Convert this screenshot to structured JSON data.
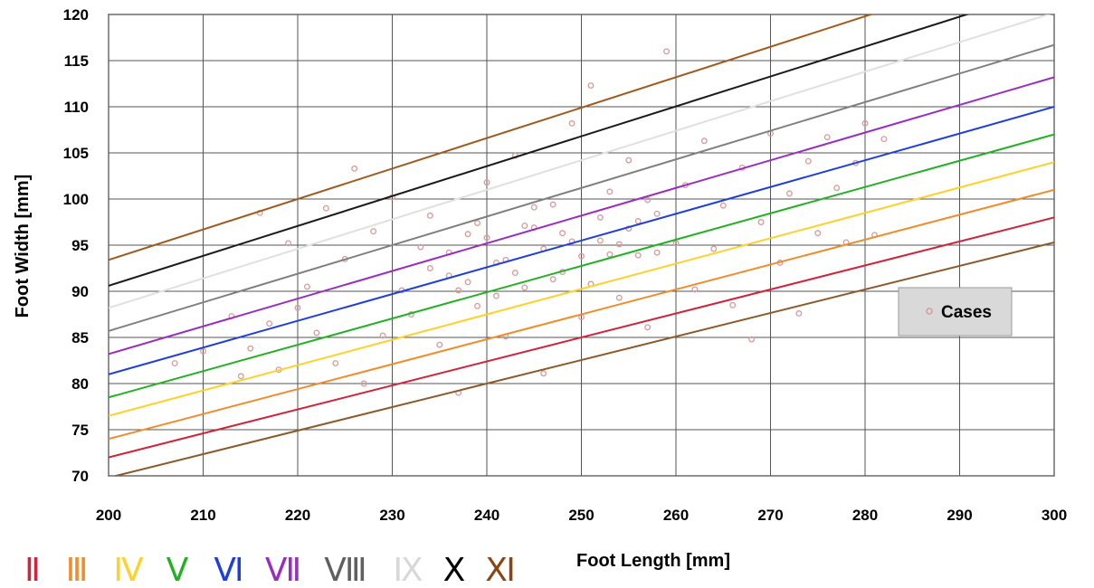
{
  "chart_data": {
    "type": "scatter",
    "xlabel": "Foot Length [mm]",
    "ylabel": "Foot Width [mm]",
    "xlim": [
      200,
      300
    ],
    "ylim": [
      70,
      120
    ],
    "xticks": [
      200,
      210,
      220,
      230,
      240,
      250,
      260,
      270,
      280,
      290,
      300
    ],
    "yticks": [
      70,
      75,
      80,
      85,
      90,
      95,
      100,
      105,
      110,
      115,
      120
    ],
    "grid": true,
    "legend": {
      "position": "right",
      "entries": [
        {
          "label": "Cases",
          "color": "#d99a9a"
        }
      ]
    },
    "scatter_series": {
      "name": "Cases",
      "color": "#d99a9a",
      "points": [
        [
          207,
          82.2
        ],
        [
          210,
          83.5
        ],
        [
          213,
          87.3
        ],
        [
          214,
          80.8
        ],
        [
          215,
          83.8
        ],
        [
          216,
          98.5
        ],
        [
          217,
          86.5
        ],
        [
          218,
          81.5
        ],
        [
          219,
          95.2
        ],
        [
          220,
          88.2
        ],
        [
          221,
          90.5
        ],
        [
          222,
          85.5
        ],
        [
          223,
          99.0
        ],
        [
          224,
          82.2
        ],
        [
          225,
          93.5
        ],
        [
          226,
          103.3
        ],
        [
          227,
          80.0
        ],
        [
          228,
          96.5
        ],
        [
          229,
          85.2
        ],
        [
          230,
          100.2
        ],
        [
          231,
          90.1
        ],
        [
          232,
          87.5
        ],
        [
          233,
          94.8
        ],
        [
          234,
          98.2
        ],
        [
          235,
          84.2
        ],
        [
          236,
          91.7
        ],
        [
          237,
          79.0
        ],
        [
          238,
          96.2
        ],
        [
          239,
          88.4
        ],
        [
          240,
          101.8
        ],
        [
          241,
          93.1
        ],
        [
          242,
          85.1
        ],
        [
          243,
          104.7
        ],
        [
          244,
          90.4
        ],
        [
          245,
          96.9
        ],
        [
          246,
          81.1
        ],
        [
          247,
          99.4
        ],
        [
          248,
          92.1
        ],
        [
          249,
          108.2
        ],
        [
          250,
          87.2
        ],
        [
          251,
          112.3
        ],
        [
          252,
          95.5
        ],
        [
          253,
          100.8
        ],
        [
          254,
          89.3
        ],
        [
          255,
          104.2
        ],
        [
          256,
          93.9
        ],
        [
          257,
          86.1
        ],
        [
          258,
          98.4
        ],
        [
          259,
          116.0
        ],
        [
          260,
          95.2
        ],
        [
          261,
          101.5
        ],
        [
          262,
          90.2
        ],
        [
          263,
          106.3
        ],
        [
          264,
          94.6
        ],
        [
          265,
          99.3
        ],
        [
          266,
          88.5
        ],
        [
          267,
          103.4
        ],
        [
          268,
          84.8
        ],
        [
          269,
          97.5
        ],
        [
          270,
          107.1
        ],
        [
          271,
          93.1
        ],
        [
          272,
          100.6
        ],
        [
          273,
          87.6
        ],
        [
          274,
          104.1
        ],
        [
          275,
          96.3
        ],
        [
          276,
          106.7
        ],
        [
          277,
          101.2
        ],
        [
          278,
          95.3
        ],
        [
          279,
          103.9
        ],
        [
          280,
          108.2
        ],
        [
          281,
          96.1
        ],
        [
          282,
          106.5
        ],
        [
          234,
          92.5
        ],
        [
          236,
          94.2
        ],
        [
          238,
          91.0
        ],
        [
          240,
          95.8
        ],
        [
          242,
          93.4
        ],
        [
          244,
          97.1
        ],
        [
          246,
          94.6
        ],
        [
          248,
          96.3
        ],
        [
          250,
          93.8
        ],
        [
          252,
          98.0
        ],
        [
          254,
          95.1
        ],
        [
          256,
          97.6
        ],
        [
          258,
          94.2
        ],
        [
          237,
          90.1
        ],
        [
          239,
          97.4
        ],
        [
          241,
          89.5
        ],
        [
          243,
          92.0
        ],
        [
          245,
          99.1
        ],
        [
          247,
          91.3
        ],
        [
          249,
          95.4
        ],
        [
          251,
          90.8
        ],
        [
          253,
          94.0
        ],
        [
          255,
          96.8
        ],
        [
          257,
          99.9
        ]
      ]
    },
    "fit_lines": [
      {
        "name": "II",
        "color": "#d0243c",
        "y_at_200": 72.0,
        "y_at_300": 98.0
      },
      {
        "name": "III",
        "color": "#f28b2a",
        "y_at_200": 74.0,
        "y_at_300": 101.0
      },
      {
        "name": "IV",
        "color": "#ffd12b",
        "y_at_200": 76.5,
        "y_at_300": 104.0
      },
      {
        "name": "V",
        "color": "#22b122",
        "y_at_200": 78.5,
        "y_at_300": 107.0
      },
      {
        "name": "VI",
        "color": "#1f3ee0",
        "y_at_200": 81.0,
        "y_at_300": 110.0
      },
      {
        "name": "VII",
        "color": "#9a2cc2",
        "y_at_200": 83.2,
        "y_at_300": 113.2
      },
      {
        "name": "VIII",
        "color": "#808080",
        "y_at_200": 85.7,
        "y_at_300": 116.7
      },
      {
        "name": "IX",
        "color": "#e0e0e0",
        "y_at_200": 88.2,
        "y_at_300": 120.2
      },
      {
        "name": "X",
        "color": "#1a1a1a",
        "y_at_200": 90.6,
        "y_at_300": 123.0
      },
      {
        "name": "XI",
        "color": "#a05a1e",
        "y_at_200": 93.4,
        "y_at_300": 126.4
      },
      {
        "name": "",
        "color": "#8b5a2b",
        "y_at_200": 69.8,
        "y_at_300": 95.3
      }
    ],
    "size_legend": [
      {
        "label": "Ⅱ",
        "color": "#d0243c"
      },
      {
        "label": "Ⅲ",
        "color": "#f28b2a"
      },
      {
        "label": "Ⅳ",
        "color": "#ffd12b"
      },
      {
        "label": "Ⅴ",
        "color": "#22b122"
      },
      {
        "label": "Ⅵ",
        "color": "#1f3ee0"
      },
      {
        "label": "Ⅶ",
        "color": "#9a2cc2"
      },
      {
        "label": "Ⅷ",
        "color": "#606060"
      },
      {
        "label": "Ⅸ",
        "color": "#d8d8d8"
      },
      {
        "label": "Ⅹ",
        "color": "#000000"
      },
      {
        "label": "Ⅺ",
        "color": "#8b4513"
      }
    ]
  }
}
